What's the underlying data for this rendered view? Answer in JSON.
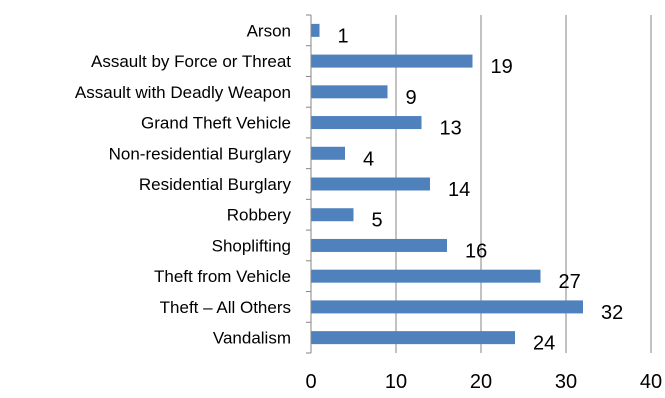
{
  "chart_data": {
    "type": "bar",
    "orientation": "horizontal",
    "categories": [
      "Arson",
      "Assault by Force or Threat",
      "Assault with Deadly Weapon",
      "Grand Theft Vehicle",
      "Non-residential Burglary",
      "Residential Burglary",
      "Robbery",
      "Shoplifting",
      "Theft from Vehicle",
      "Theft – All Others",
      "Vandalism"
    ],
    "values": [
      1,
      19,
      9,
      13,
      4,
      14,
      5,
      16,
      27,
      32,
      24
    ],
    "xlim": [
      0,
      40
    ],
    "xticks": [
      0,
      10,
      20,
      30,
      40
    ],
    "title": "",
    "xlabel": "",
    "ylabel": "",
    "grid": "vertical",
    "legend": "none",
    "data_labels": true,
    "colors": {
      "bar": "#4f81bd",
      "grid": "#868686",
      "axis": "#868686"
    }
  }
}
